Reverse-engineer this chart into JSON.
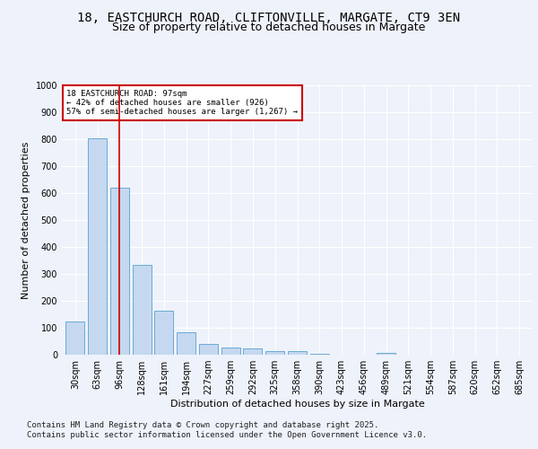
{
  "title1": "18, EASTCHURCH ROAD, CLIFTONVILLE, MARGATE, CT9 3EN",
  "title2": "Size of property relative to detached houses in Margate",
  "xlabel": "Distribution of detached houses by size in Margate",
  "ylabel": "Number of detached properties",
  "bar_labels": [
    "30sqm",
    "63sqm",
    "96sqm",
    "128sqm",
    "161sqm",
    "194sqm",
    "227sqm",
    "259sqm",
    "292sqm",
    "325sqm",
    "358sqm",
    "390sqm",
    "423sqm",
    "456sqm",
    "489sqm",
    "521sqm",
    "554sqm",
    "587sqm",
    "620sqm",
    "652sqm",
    "685sqm"
  ],
  "bar_values": [
    125,
    805,
    620,
    335,
    165,
    82,
    40,
    27,
    22,
    15,
    14,
    3,
    0,
    0,
    8,
    0,
    0,
    0,
    0,
    0,
    0
  ],
  "bar_color": "#c5d8f0",
  "bar_edgecolor": "#6aaad4",
  "vline_color": "#cc0000",
  "annotation_text": "18 EASTCHURCH ROAD: 97sqm\n← 42% of detached houses are smaller (926)\n57% of semi-detached houses are larger (1,267) →",
  "annotation_box_color": "#cc0000",
  "background_color": "#eef2fa",
  "plot_bg_color": "#eef2fa",
  "ylim": [
    0,
    1000
  ],
  "yticks": [
    0,
    100,
    200,
    300,
    400,
    500,
    600,
    700,
    800,
    900,
    1000
  ],
  "footer1": "Contains HM Land Registry data © Crown copyright and database right 2025.",
  "footer2": "Contains public sector information licensed under the Open Government Licence v3.0.",
  "title_fontsize": 10,
  "subtitle_fontsize": 9,
  "axis_fontsize": 8,
  "tick_fontsize": 7,
  "footer_fontsize": 6.5
}
